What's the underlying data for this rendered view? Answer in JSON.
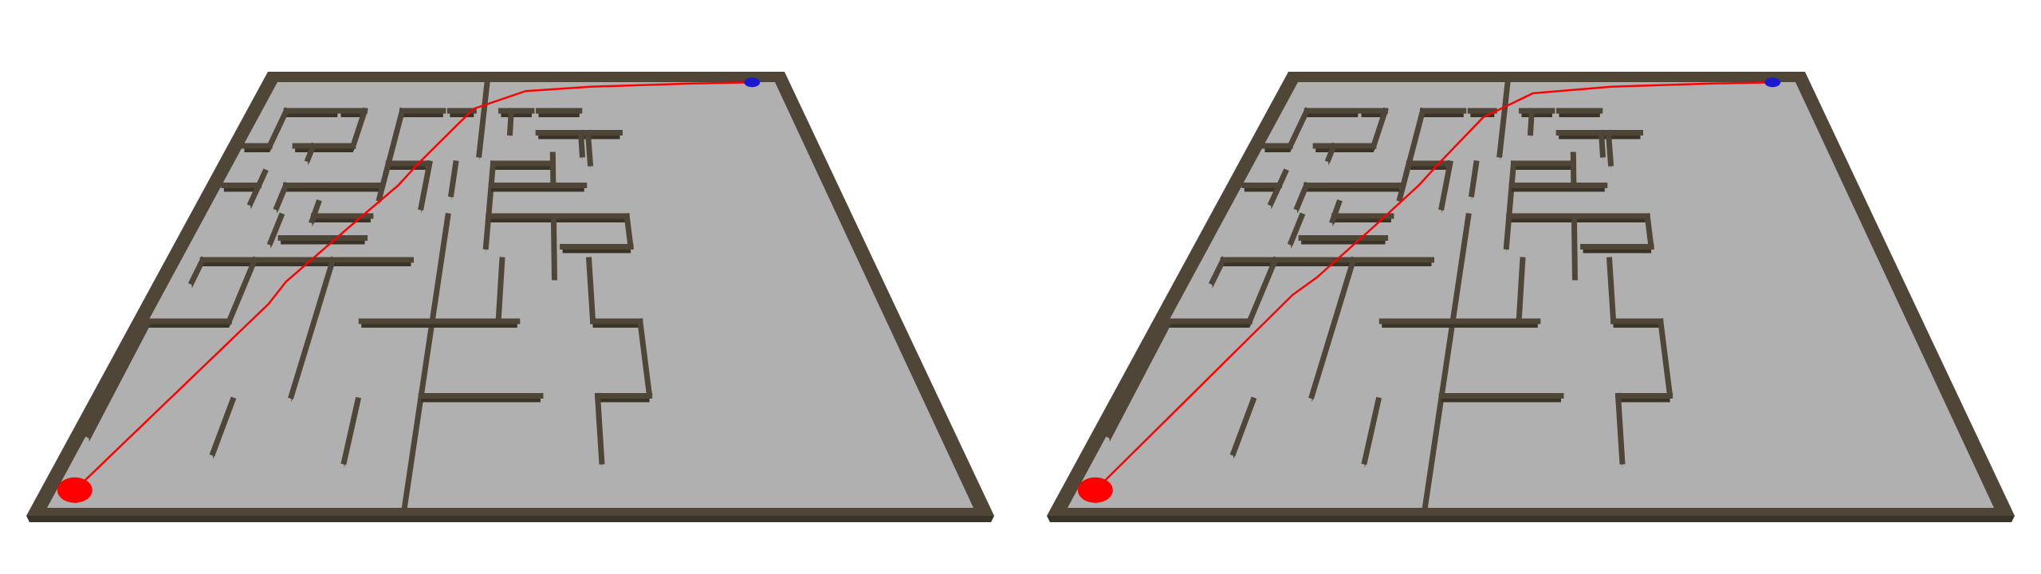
{
  "colors": {
    "background": "#ffffff",
    "floor": "#b0b0b0",
    "wall_top": "#4f4638",
    "wall_side": "#3a3328",
    "wall_edge": "#7a6c55",
    "path": "#ff0000",
    "start_marker": "#ff0000",
    "goal_marker": "#1a1ad0"
  },
  "icons": {
    "start": "red-start-disc",
    "goal": "blue-goal-disc"
  },
  "views": [
    {
      "name": "maze-view-left",
      "path_label": "",
      "path_variant": "a"
    },
    {
      "name": "maze-view-right",
      "path_label": "",
      "path_variant": "b"
    }
  ]
}
